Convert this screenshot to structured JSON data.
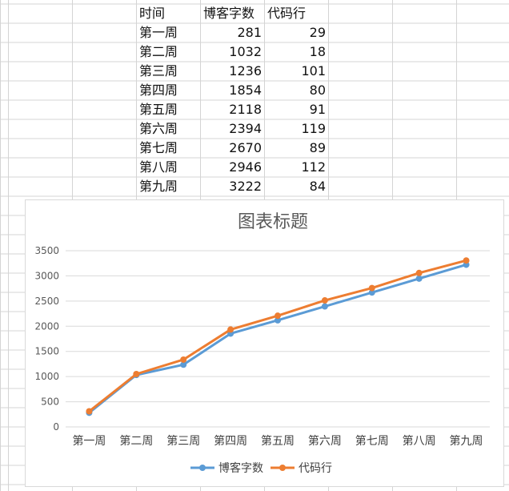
{
  "sheet": {
    "headers": [
      "时间",
      "博客字数",
      "代码行"
    ],
    "rows": [
      [
        "第一周",
        "281",
        "29"
      ],
      [
        "第二周",
        "1032",
        "18"
      ],
      [
        "第三周",
        "1236",
        "101"
      ],
      [
        "第四周",
        "1854",
        "80"
      ],
      [
        "第五周",
        "2118",
        "91"
      ],
      [
        "第六周",
        "2394",
        "119"
      ],
      [
        "第七周",
        "2670",
        "89"
      ],
      [
        "第八周",
        "2946",
        "112"
      ],
      [
        "第九周",
        "3222",
        "84"
      ]
    ]
  },
  "chart_data": {
    "type": "line",
    "title": "图表标题",
    "categories": [
      "第一周",
      "第二周",
      "第三周",
      "第四周",
      "第五周",
      "第六周",
      "第七周",
      "第八周",
      "第九周"
    ],
    "series": [
      {
        "name": "博客字数",
        "color": "#5b9bd5",
        "values": [
          281,
          1032,
          1236,
          1854,
          2118,
          2394,
          2670,
          2946,
          3222
        ]
      },
      {
        "name": "代码行",
        "color": "#ed7d31",
        "values": [
          310,
          1050,
          1337,
          1934,
          2209,
          2513,
          2759,
          3058,
          3306
        ]
      }
    ],
    "ylim": [
      0,
      3500
    ],
    "yticks": [
      "0",
      "500",
      "1000",
      "1500",
      "2000",
      "2500",
      "3000",
      "3500"
    ],
    "grid": true,
    "legend": "bottom"
  }
}
